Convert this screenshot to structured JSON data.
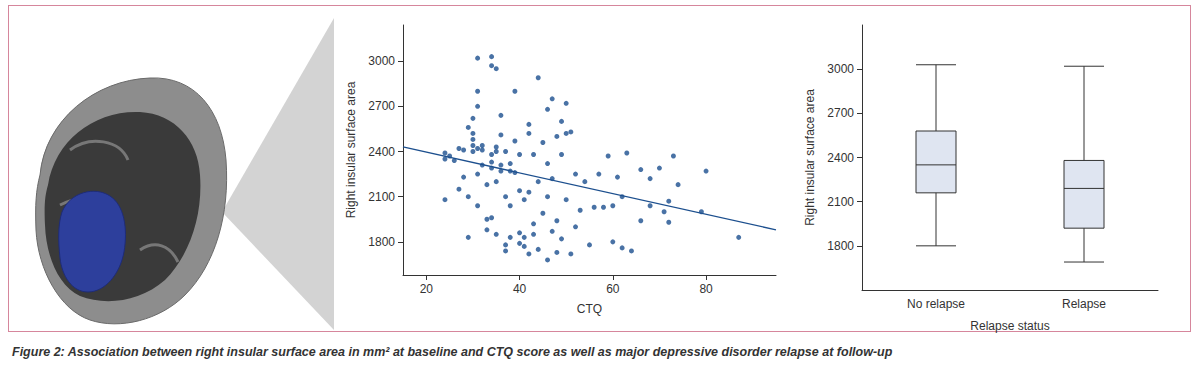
{
  "caption": "Figure 2: Association between right insular surface area in mm² at baseline and CTQ score as well as major depressive disorder relapse at follow-up",
  "chart_data": [
    {
      "type": "scatter",
      "x_label": "CTQ",
      "y_label": "Right insular surface area",
      "color": "#1c4f8e",
      "x": [
        24,
        24,
        24,
        25,
        26,
        27,
        27,
        28,
        28,
        29,
        29,
        29,
        30,
        30,
        30,
        30,
        30,
        31,
        31,
        31,
        31,
        31,
        31,
        32,
        32,
        32,
        33,
        33,
        33,
        34,
        34,
        34,
        34,
        34,
        34,
        35,
        35,
        35,
        35,
        35,
        36,
        36,
        36,
        36,
        37,
        37,
        37,
        37,
        38,
        38,
        38,
        38,
        39,
        39,
        39,
        40,
        40,
        40,
        40,
        41,
        41,
        41,
        42,
        42,
        42,
        42,
        43,
        43,
        43,
        44,
        44,
        44,
        45,
        45,
        46,
        46,
        46,
        46,
        47,
        47,
        47,
        48,
        48,
        48,
        49,
        49,
        49,
        50,
        50,
        50,
        51,
        51,
        52,
        52,
        53,
        54,
        55,
        56,
        57,
        58,
        59,
        60,
        60,
        61,
        62,
        62,
        63,
        64,
        66,
        66,
        68,
        68,
        70,
        71,
        72,
        72,
        73,
        74,
        79,
        80,
        87
      ],
      "values": [
        2390,
        2350,
        2080,
        2370,
        2340,
        2420,
        2150,
        2410,
        2230,
        2560,
        1830,
        2100,
        2620,
        2480,
        2440,
        2520,
        2400,
        3020,
        2800,
        2700,
        2420,
        2250,
        2040,
        2440,
        2410,
        2310,
        2180,
        1950,
        1880,
        3030,
        2970,
        2380,
        2330,
        2290,
        1960,
        2950,
        2430,
        2400,
        2200,
        1850,
        2640,
        2510,
        2310,
        2270,
        2400,
        2100,
        1780,
        1740,
        2320,
        2270,
        2040,
        1830,
        2800,
        2470,
        2260,
        2380,
        2140,
        1860,
        1790,
        1830,
        1770,
        2080,
        2580,
        2520,
        2130,
        1720,
        2380,
        1920,
        1850,
        2890,
        2200,
        1750,
        2460,
        1990,
        2680,
        2320,
        2100,
        1680,
        2750,
        2220,
        1870,
        2500,
        1940,
        1730,
        2600,
        2380,
        1820,
        2720,
        2520,
        2080,
        2530,
        1720,
        2250,
        1900,
        2010,
        2200,
        1780,
        2030,
        2250,
        2030,
        2370,
        2040,
        1800,
        2230,
        2100,
        1760,
        2390,
        1740,
        2280,
        1940,
        2220,
        2040,
        2290,
        2000,
        1930,
        2070,
        2370,
        2180,
        2000,
        2270,
        1830
      ],
      "fit": {
        "x": [
          15,
          95
        ],
        "values": [
          2430,
          1880
        ]
      },
      "xlim": [
        15,
        95
      ],
      "xticks": [
        20,
        40,
        60,
        80
      ],
      "ylim": [
        1580,
        3240
      ],
      "yticks": [
        1800,
        2100,
        2400,
        2700,
        3000
      ],
      "grid": false
    },
    {
      "type": "boxplot",
      "x_label": "Relapse status",
      "y_label": "Right insular surface area",
      "color": "#dfe5f1",
      "categories": [
        "No relapse",
        "Relapse"
      ],
      "values": [
        [
          1800,
          2160,
          2350,
          2580,
          3030
        ],
        [
          1690,
          1920,
          2190,
          2380,
          3020
        ]
      ],
      "ylim": [
        1500,
        3300
      ],
      "yticks": [
        1800,
        2100,
        2400,
        2700,
        3000
      ],
      "grid": false
    }
  ]
}
